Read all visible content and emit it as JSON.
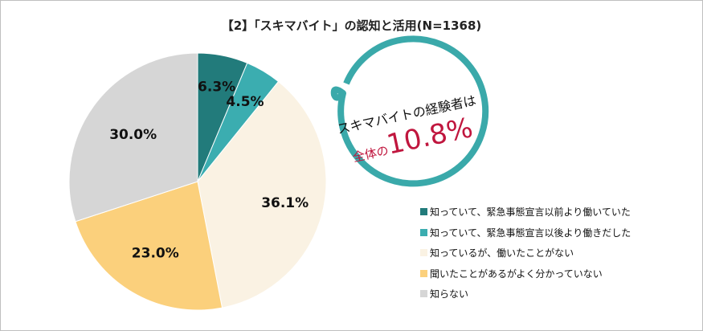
{
  "chart_data": {
    "type": "pie",
    "title": "【2】「スキマバイト」の認知と活用(N=1368)",
    "categories": [
      "知っていて、緊急事態宣言以前より働いていた",
      "知っていて、緊急事態宣言以後より働きだした",
      "知っているが、働いたことがない",
      "聞いたことがあるがよく分かっていない",
      "知らない"
    ],
    "values": [
      6.3,
      4.5,
      36.1,
      23.0,
      30.0
    ],
    "labels": [
      "6.3%",
      "4.5%",
      "36.1%",
      "23.0%",
      "30.0%"
    ],
    "colors": [
      "#227b7b",
      "#3badb0",
      "#faf2e3",
      "#fbd07c",
      "#d6d6d6"
    ],
    "label_colors": [
      "#ffffff",
      "#111111",
      "#111111",
      "#111111",
      "#111111"
    ],
    "legend_position": "bottom-right"
  },
  "callout": {
    "line1": "スキマバイトの経験者は",
    "prefix": "全体の",
    "value": "10.8%",
    "ring_color": "#3aa9aa",
    "accent": "#c0163e"
  }
}
